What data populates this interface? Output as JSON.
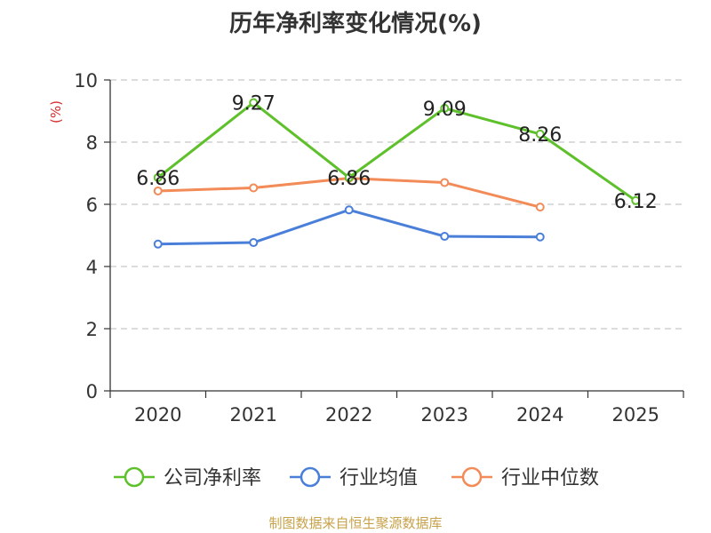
{
  "title": "历年净利率变化情况(%)",
  "footer": "制图数据来自恒生聚源数据库",
  "chart_data": {
    "type": "line",
    "title": "历年净利率变化情况(%)",
    "ylabel": "(%)",
    "xlabel": "",
    "categories": [
      "2020",
      "2021",
      "2022",
      "2023",
      "2024",
      "2025"
    ],
    "ylim": [
      0,
      10
    ],
    "yticks": [
      0,
      2,
      4,
      6,
      8,
      10
    ],
    "grid": true,
    "legend_position": "bottom",
    "series": [
      {
        "name": "公司净利率",
        "color": "#5ec02a",
        "values": [
          6.86,
          9.27,
          6.86,
          9.09,
          8.26,
          6.12
        ],
        "show_labels": true
      },
      {
        "name": "行业均值",
        "color": "#4a7fd9",
        "values": [
          4.72,
          4.77,
          5.82,
          4.97,
          4.95,
          null
        ],
        "show_labels": false
      },
      {
        "name": "行业中位数",
        "color": "#f28b57",
        "values": [
          6.43,
          6.53,
          6.84,
          6.7,
          5.91,
          null
        ],
        "show_labels": false
      }
    ]
  }
}
